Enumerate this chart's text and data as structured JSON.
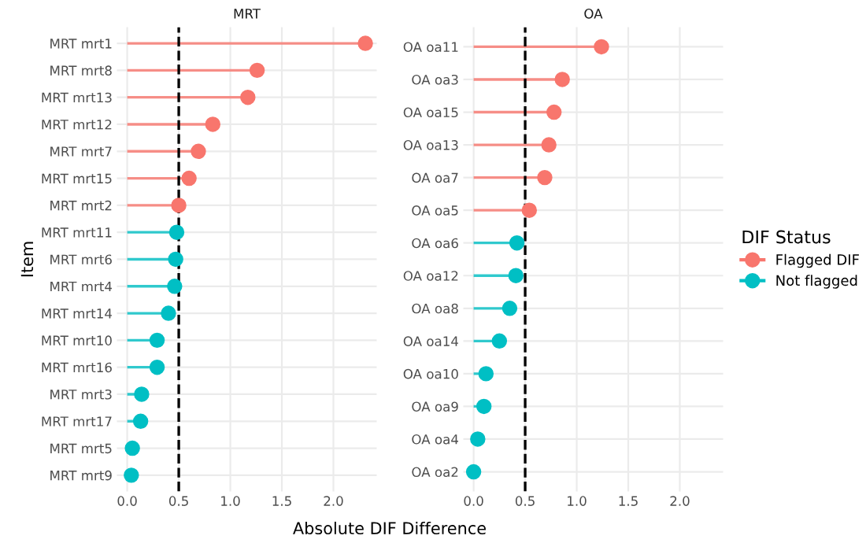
{
  "chart_data": [
    {
      "type": "lollipop",
      "title": "MRT",
      "ylabel": "Item",
      "xlabel": "Absolute DIF Difference",
      "categories": [
        "MRT mrt1",
        "MRT mrt8",
        "MRT mrt13",
        "MRT mrt12",
        "MRT mrt7",
        "MRT mrt15",
        "MRT mrt2",
        "MRT mrt11",
        "MRT mrt6",
        "MRT mrt4",
        "MRT mrt14",
        "MRT mrt10",
        "MRT mrt16",
        "MRT mrt3",
        "MRT mrt17",
        "MRT mrt5",
        "MRT mrt9"
      ],
      "series": [
        {
          "color": "#f8766d",
          "values": [
            2.31,
            1.26,
            1.17,
            0.83,
            0.69,
            0.6,
            0.5,
            null,
            null,
            null,
            null,
            null,
            null,
            null,
            null,
            null,
            null
          ]
        },
        {
          "color": "#00bfc4",
          "values": [
            null,
            null,
            null,
            null,
            null,
            null,
            null,
            0.48,
            0.47,
            0.46,
            0.4,
            0.29,
            0.29,
            0.14,
            0.13,
            0.05,
            0.04
          ]
        }
      ],
      "orientation": "horizontal",
      "xlim": [
        -0.1,
        2.42
      ],
      "xticks": [
        {
          "value": 0,
          "label": "0.0"
        },
        {
          "value": 0.5,
          "label": "0.5"
        },
        {
          "value": 1,
          "label": "1.0"
        },
        {
          "value": 1.5,
          "label": "1.5"
        },
        {
          "value": 2,
          "label": "2.0"
        }
      ],
      "ref_lines": [
        {
          "axis": "x",
          "value": 0.5,
          "color": "#000000",
          "line_style": "dashed"
        }
      ],
      "grid": true,
      "marker": "circle"
    },
    {
      "type": "lollipop",
      "title": "OA",
      "categories": [
        "OA oa11",
        "OA oa3",
        "OA oa15",
        "OA oa13",
        "OA oa7",
        "OA oa5",
        "OA oa6",
        "OA oa12",
        "OA oa8",
        "OA oa14",
        "OA oa10",
        "OA oa9",
        "OA oa4",
        "OA oa2"
      ],
      "series": [
        {
          "name": "Flagged DIF",
          "color": "#f8766d",
          "values": [
            1.24,
            0.86,
            0.78,
            0.73,
            0.69,
            0.54,
            null,
            null,
            null,
            null,
            null,
            null,
            null,
            null
          ]
        },
        {
          "name": "Not flagged",
          "color": "#00bfc4",
          "values": [
            null,
            null,
            null,
            null,
            null,
            null,
            0.42,
            0.41,
            0.35,
            0.25,
            0.12,
            0.1,
            0.04,
            0.0
          ]
        }
      ],
      "orientation": "horizontal",
      "xlim": [
        -0.1,
        2.42
      ],
      "xticks": [
        {
          "value": 0,
          "label": "0.0"
        },
        {
          "value": 0.5,
          "label": "0.5"
        },
        {
          "value": 1,
          "label": "1.0"
        },
        {
          "value": 1.5,
          "label": "1.5"
        },
        {
          "value": 2,
          "label": "2.0"
        }
      ],
      "ref_lines": [
        {
          "axis": "x",
          "value": 0.5,
          "color": "#000000",
          "line_style": "dashed"
        }
      ],
      "grid": true,
      "marker": "circle",
      "legend": "right",
      "legend_title": "DIF Status"
    }
  ]
}
